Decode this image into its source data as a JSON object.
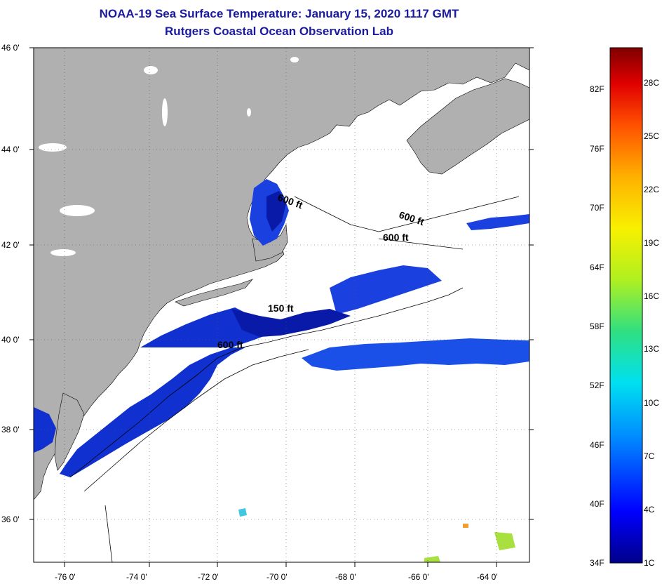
{
  "header": {
    "title": "NOAA-19 Sea Surface Temperature:  January 15, 2020 1117 GMT",
    "subtitle": "Rutgers Coastal Ocean Observation Lab"
  },
  "map": {
    "lat_labels": [
      "46 0'",
      "44 0'",
      "42 0'",
      "40 0'",
      "38 0'",
      "36 0'"
    ],
    "lon_labels": [
      "-76 0'",
      "-74 0'",
      "-72 0'",
      "-70 0'",
      "-68 0'",
      "-66 0'",
      "-64 0'"
    ],
    "contour_labels": [
      "600 ft",
      "600 ft",
      "600 ft",
      "150 ft",
      "600 ft"
    ],
    "colors": {
      "land": "#b0b0b0",
      "ocean": "#ffffff",
      "sst_cold": "#1030d0",
      "sst_deep": "#0a1aa8"
    }
  },
  "colorbar": {
    "fahrenheit": [
      "82F",
      "76F",
      "70F",
      "64F",
      "58F",
      "52F",
      "46F",
      "40F",
      "34F"
    ],
    "celsius": [
      "28C",
      "25C",
      "22C",
      "19C",
      "16C",
      "13C",
      "10C",
      "7C",
      "4C",
      "1C"
    ]
  }
}
